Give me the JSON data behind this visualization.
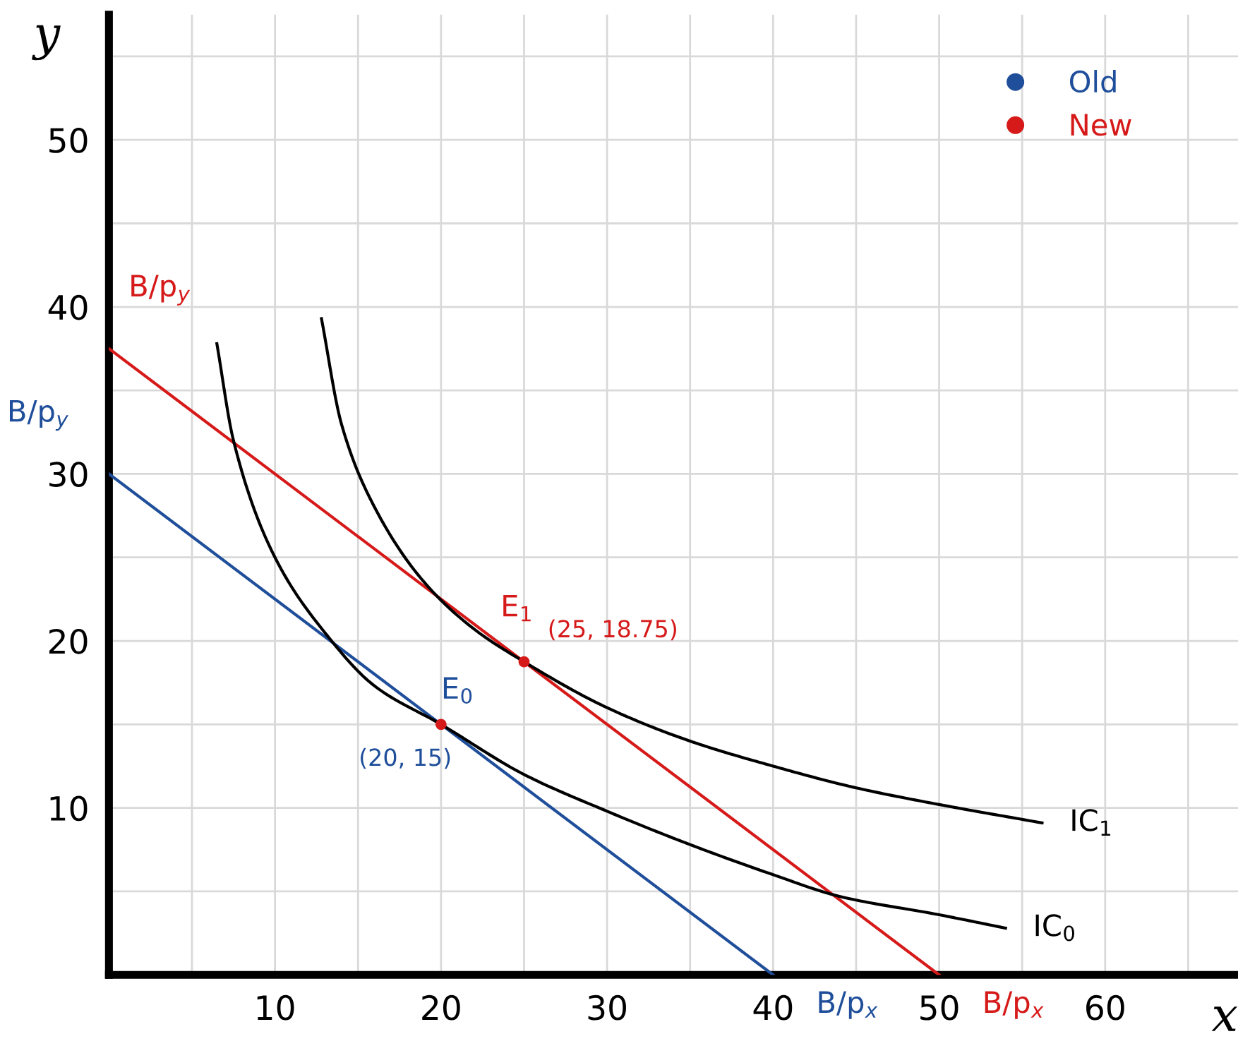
{
  "chart_data": {
    "type": "line",
    "xlabel": "x",
    "ylabel": "y",
    "xlim": [
      0,
      68
    ],
    "ylim": [
      0,
      57.5
    ],
    "xticks": [
      {
        "value": 5,
        "label": null
      },
      10,
      {
        "value": 15,
        "label": null
      },
      20,
      {
        "value": 25,
        "label": null
      },
      30,
      {
        "value": 35,
        "label": null
      },
      40,
      {
        "value": 45,
        "label": null
      },
      50,
      {
        "value": 55,
        "label": null
      },
      60,
      {
        "value": 65,
        "label": null
      }
    ],
    "yticks": [
      {
        "value": 5,
        "label": null
      },
      10,
      {
        "value": 15,
        "label": null
      },
      20,
      {
        "value": 25,
        "label": null
      },
      30,
      {
        "value": 35,
        "label": null
      },
      40,
      {
        "value": 45,
        "label": null
      },
      50,
      {
        "value": 55,
        "label": null
      }
    ],
    "grid": true,
    "legend": "top right",
    "marker": "none",
    "line_style": "solid",
    "series": [
      {
        "name": "Old",
        "color": "#1f4e9a",
        "x": [
          0,
          40
        ],
        "values": [
          30,
          0
        ]
      },
      {
        "name": "New",
        "color": "#d61a1a",
        "x": [
          0,
          50
        ],
        "values": [
          37.5,
          0
        ]
      },
      {
        "color": "#000000",
        "x": [
          6.5,
          7.5,
          10,
          13,
          16,
          20,
          25,
          30,
          35,
          40,
          44,
          50,
          54
        ],
        "values": [
          37.8,
          32,
          25,
          20.5,
          17.3,
          15,
          12.0,
          9.8,
          7.8,
          6.0,
          4.7,
          3.6,
          2.8
        ]
      },
      {
        "color": "#000000",
        "x": [
          12.8,
          14,
          16,
          19,
          22,
          25,
          30,
          35,
          40,
          45,
          50,
          56.2
        ],
        "values": [
          39.3,
          33,
          28,
          23.5,
          20.7,
          18.75,
          16.0,
          14.0,
          12.5,
          11.2,
          10.2,
          9.1
        ]
      },
      {
        "type": "scatter",
        "color": "#d61a1a",
        "marker": "circle",
        "x": [
          20,
          25
        ],
        "values": [
          15,
          18.75
        ]
      }
    ],
    "annotations": [
      {
        "text": "E$_{0}$",
        "x": 20,
        "y": 15
      },
      {
        "text": "(20, 15)",
        "x": 20,
        "y": 15
      },
      {
        "text": "E$_{1}$",
        "x": 25,
        "y": 18.75
      },
      {
        "text": "(25, 18.75)",
        "x": 25,
        "y": 18.75
      },
      {
        "text": "B/p$_{y}$",
        "x": 0,
        "y": 30
      },
      {
        "text": "B/p$_{y}$",
        "x": 0,
        "y": 37.5
      },
      {
        "text": "B/p$_{x}$",
        "x": 40,
        "y": 0
      },
      {
        "text": "B/p$_{x}$",
        "x": 50,
        "y": 0
      },
      {
        "text": "IC$_{0}$",
        "x": 54,
        "y": 2.8
      },
      {
        "text": "IC$_{1}$",
        "x": 56.2,
        "y": 9.1
      }
    ]
  }
}
